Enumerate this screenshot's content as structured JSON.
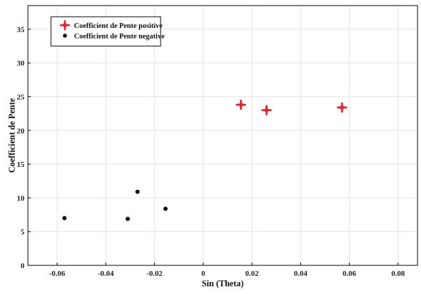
{
  "chart_data": {
    "type": "scatter",
    "xlabel": "Sin (Theta)",
    "ylabel": "Coefficient de Pente",
    "xlim": [
      -0.072,
      0.088
    ],
    "ylim": [
      0,
      38.5
    ],
    "grid": true,
    "legend_position": "top-left",
    "x_ticks": [
      -0.06,
      -0.04,
      -0.02,
      0,
      0.02,
      0.04,
      0.06,
      0.08
    ],
    "x_tick_labels": [
      "-0.06",
      "-0.04",
      "-0.02",
      "0",
      "0.02",
      "0.04",
      "0.06",
      "0.08"
    ],
    "y_ticks": [
      0,
      5,
      10,
      15,
      20,
      25,
      30,
      35
    ],
    "y_tick_labels": [
      "0",
      "5",
      "10",
      "15",
      "20",
      "25",
      "30",
      "35"
    ],
    "series": [
      {
        "name": "Coefficient de Pente positive",
        "color": "#e8202a",
        "marker": "plus",
        "points": [
          {
            "x": 0.0155,
            "y": 23.8
          },
          {
            "x": 0.026,
            "y": 23.0
          },
          {
            "x": 0.057,
            "y": 23.4
          }
        ]
      },
      {
        "name": "Coefficient de Pente negative",
        "color": "#000000",
        "marker": "dot",
        "points": [
          {
            "x": -0.057,
            "y": 7.0
          },
          {
            "x": -0.031,
            "y": 6.9
          },
          {
            "x": -0.027,
            "y": 10.9
          },
          {
            "x": -0.0155,
            "y": 8.4
          }
        ]
      }
    ]
  }
}
